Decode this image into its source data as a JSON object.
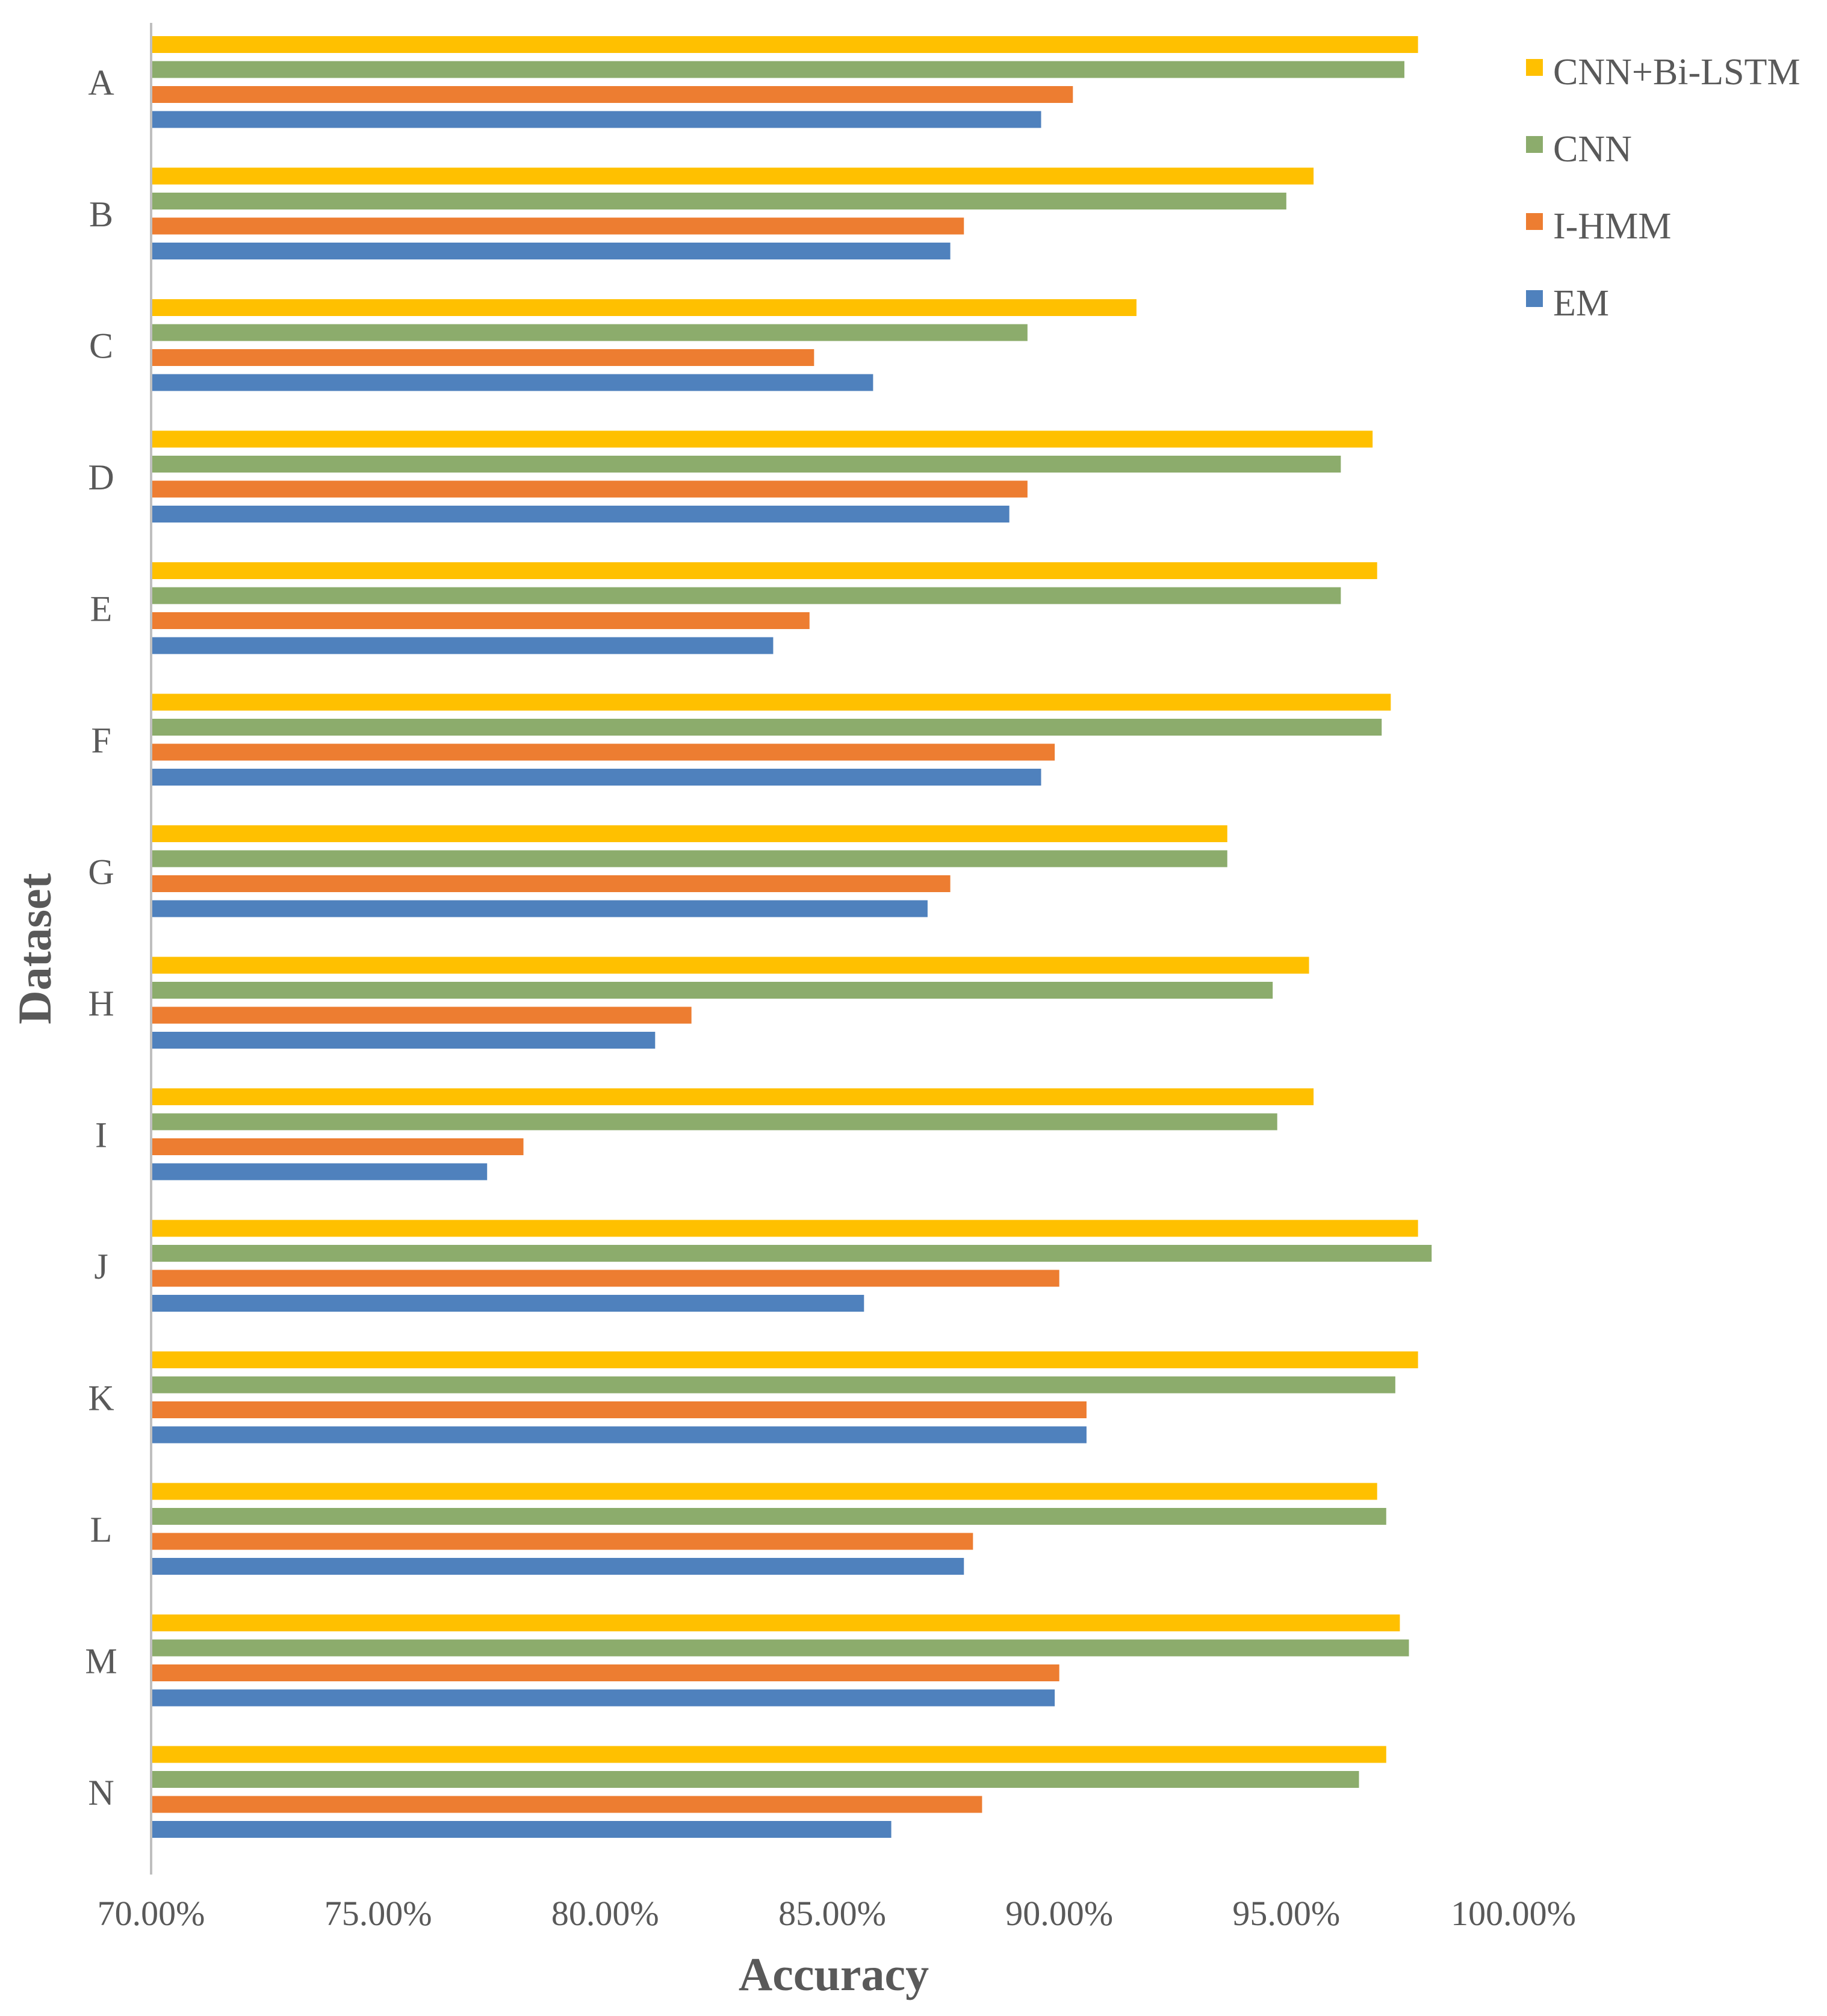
{
  "chart_data": {
    "type": "bar",
    "orientation": "horizontal",
    "title": "",
    "xlabel": "Accuracy",
    "ylabel": "Dataset",
    "xlim": [
      0.7,
      1.0
    ],
    "x_ticks": [
      "70.00%",
      "75.00%",
      "80.00%",
      "85.00%",
      "90.00%",
      "95.00%",
      "100.00%"
    ],
    "grid": false,
    "legend_position": "top-right",
    "categories": [
      "A",
      "B",
      "C",
      "D",
      "E",
      "F",
      "G",
      "H",
      "I",
      "J",
      "K",
      "L",
      "M",
      "N"
    ],
    "series": [
      {
        "name": "CNN+Bi-LSTM",
        "color": "#FFC000",
        "values": [
          0.979,
          0.956,
          0.917,
          0.969,
          0.97,
          0.973,
          0.937,
          0.955,
          0.956,
          0.979,
          0.979,
          0.97,
          0.975,
          0.972
        ]
      },
      {
        "name": "CNN",
        "color": "#8CAC6C",
        "values": [
          0.976,
          0.95,
          0.893,
          0.962,
          0.962,
          0.971,
          0.937,
          0.947,
          0.948,
          0.982,
          0.974,
          0.972,
          0.977,
          0.966
        ]
      },
      {
        "name": "I-HMM",
        "color": "#ED7D31",
        "values": [
          0.903,
          0.879,
          0.846,
          0.893,
          0.845,
          0.899,
          0.876,
          0.819,
          0.782,
          0.9,
          0.906,
          0.881,
          0.9,
          0.883
        ]
      },
      {
        "name": "EM",
        "color": "#4F81BD",
        "values": [
          0.896,
          0.876,
          0.859,
          0.889,
          0.837,
          0.896,
          0.871,
          0.811,
          0.774,
          0.857,
          0.906,
          0.879,
          0.899,
          0.863
        ]
      }
    ]
  }
}
